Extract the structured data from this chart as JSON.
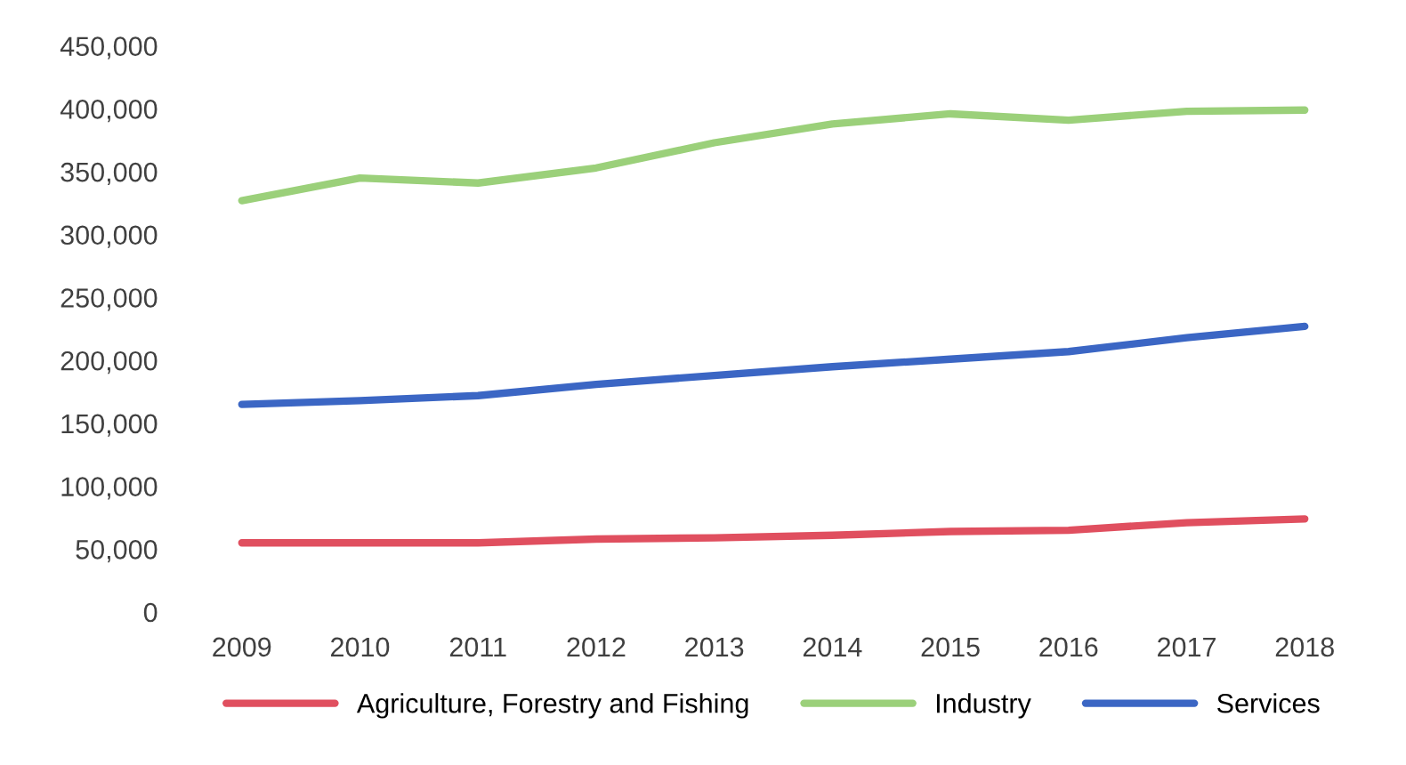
{
  "chart_data": {
    "type": "line",
    "categories": [
      "2009",
      "2010",
      "2011",
      "2012",
      "2013",
      "2014",
      "2015",
      "2016",
      "2017",
      "2018"
    ],
    "series": [
      {
        "name": "Agriculture, Forestry and Fishing",
        "color": "#e04f5f",
        "values": [
          55000,
          55000,
          55000,
          58000,
          59000,
          61000,
          64000,
          65000,
          71000,
          74000
        ]
      },
      {
        "name": "Industry",
        "color": "#9bd07a",
        "values": [
          327000,
          345000,
          341000,
          353000,
          373000,
          388000,
          396000,
          391000,
          398000,
          399000
        ]
      },
      {
        "name": "Services",
        "color": "#3b66c4",
        "values": [
          165000,
          168000,
          172000,
          181000,
          188000,
          195000,
          201000,
          207000,
          218000,
          227000
        ]
      }
    ],
    "ylim": [
      0,
      450000
    ],
    "yticks": [
      {
        "value": 0,
        "label": "0"
      },
      {
        "value": 50000,
        "label": "50,000"
      },
      {
        "value": 100000,
        "label": "100,000"
      },
      {
        "value": 150000,
        "label": "150,000"
      },
      {
        "value": 200000,
        "label": "200,000"
      },
      {
        "value": 250000,
        "label": "250,000"
      },
      {
        "value": 300000,
        "label": "300,000"
      },
      {
        "value": 350000,
        "label": "350,000"
      },
      {
        "value": 400000,
        "label": "400,000"
      },
      {
        "value": 450000,
        "label": "450,000"
      }
    ],
    "grid": false,
    "legend": "bottom",
    "marker": "none",
    "line_style": "solid"
  }
}
